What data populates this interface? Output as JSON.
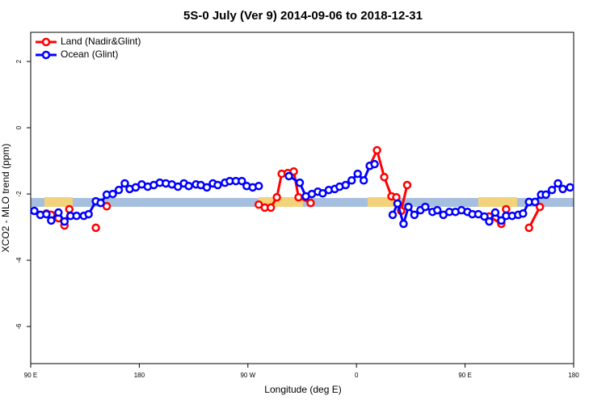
{
  "chart_data": {
    "type": "line",
    "title": "5S-0 July (Ver 9)   2014-09-06 to 2018-12-31",
    "x_label": "Longitude (deg E)",
    "y_label": "XCO2 - MLO trend (ppm)",
    "xlim": [
      90,
      540
    ],
    "ylim": [
      -7.12,
      2.88
    ],
    "xticks": [
      {
        "value": 90,
        "label": "90 E"
      },
      180,
      {
        "value": 270,
        "label": "90 W"
      },
      {
        "value": 360,
        "label": "0"
      },
      {
        "value": 450,
        "label": "90 E"
      },
      {
        "value": 540,
        "label": "180"
      }
    ],
    "yticks": [
      2,
      0,
      -2,
      -4,
      -6
    ],
    "legend": "top-left",
    "series": [
      {
        "name": "Land (Nadir&Glint)",
        "color": "#ff0000",
        "x": [
          103,
          107,
          113,
          118,
          122,
          null,
          144,
          null,
          153,
          null,
          279,
          284,
          289,
          294,
          298,
          303,
          308,
          312,
          322,
          null,
          371,
          377,
          383,
          389,
          393,
          397,
          402,
          null,
          470,
          480,
          484,
          null,
          503,
          512
        ],
        "values": [
          -2.59,
          -2.63,
          -2.73,
          -2.95,
          -2.46,
          null,
          -3.02,
          null,
          -2.37,
          null,
          -2.32,
          -2.41,
          -2.41,
          -2.1,
          -1.39,
          -1.37,
          -1.32,
          -2.1,
          -2.27,
          null,
          -1.15,
          -0.68,
          -1.49,
          -2.07,
          -2.1,
          -2.51,
          -1.73,
          null,
          -2.68,
          -2.9,
          -2.46,
          null,
          -3.02,
          -2.39
        ]
      },
      {
        "name": "Ocean (Glint)",
        "color": "#0000ff",
        "x": [
          93,
          98,
          103,
          107,
          113,
          118,
          123,
          128,
          134,
          138,
          144,
          148,
          153,
          158,
          163,
          168,
          172,
          177,
          182,
          187,
          192,
          197,
          202,
          207,
          212,
          217,
          221,
          227,
          231,
          236,
          241,
          245,
          251,
          255,
          260,
          265,
          269,
          274,
          279,
          null,
          304,
          313,
          318,
          323,
          328,
          332,
          337,
          342,
          346,
          351,
          356,
          361,
          366,
          371,
          375,
          null,
          390,
          394,
          399,
          403,
          408,
          413,
          417,
          423,
          427,
          432,
          437,
          442,
          447,
          452,
          456,
          461,
          466,
          470,
          475,
          480,
          484,
          489,
          494,
          498,
          503,
          508,
          513,
          517,
          522,
          527,
          531,
          537
        ],
        "values": [
          -2.51,
          -2.63,
          -2.61,
          -2.8,
          -2.56,
          -2.83,
          -2.66,
          -2.66,
          -2.66,
          -2.61,
          -2.22,
          -2.27,
          -2.02,
          -2.0,
          -1.88,
          -1.68,
          -1.85,
          -1.8,
          -1.71,
          -1.78,
          -1.73,
          -1.66,
          -1.68,
          -1.71,
          -1.78,
          -1.68,
          -1.76,
          -1.71,
          -1.73,
          -1.8,
          -1.68,
          -1.73,
          -1.66,
          -1.61,
          -1.61,
          -1.61,
          -1.76,
          -1.8,
          -1.76,
          null,
          -1.46,
          -1.66,
          -2.07,
          -2.0,
          -1.93,
          -1.98,
          -1.88,
          -1.85,
          -1.78,
          -1.73,
          -1.59,
          -1.39,
          -1.59,
          -1.15,
          -1.1,
          null,
          -2.63,
          -2.29,
          -2.9,
          -2.39,
          -2.63,
          -2.49,
          -2.39,
          -2.54,
          -2.49,
          -2.63,
          -2.54,
          -2.54,
          -2.49,
          -2.54,
          -2.61,
          -2.61,
          -2.68,
          -2.83,
          -2.56,
          -2.8,
          -2.66,
          -2.66,
          -2.63,
          -2.59,
          -2.24,
          -2.24,
          -2.02,
          -2.02,
          -1.88,
          -1.68,
          -1.85,
          -1.8
        ]
      }
    ]
  }
}
